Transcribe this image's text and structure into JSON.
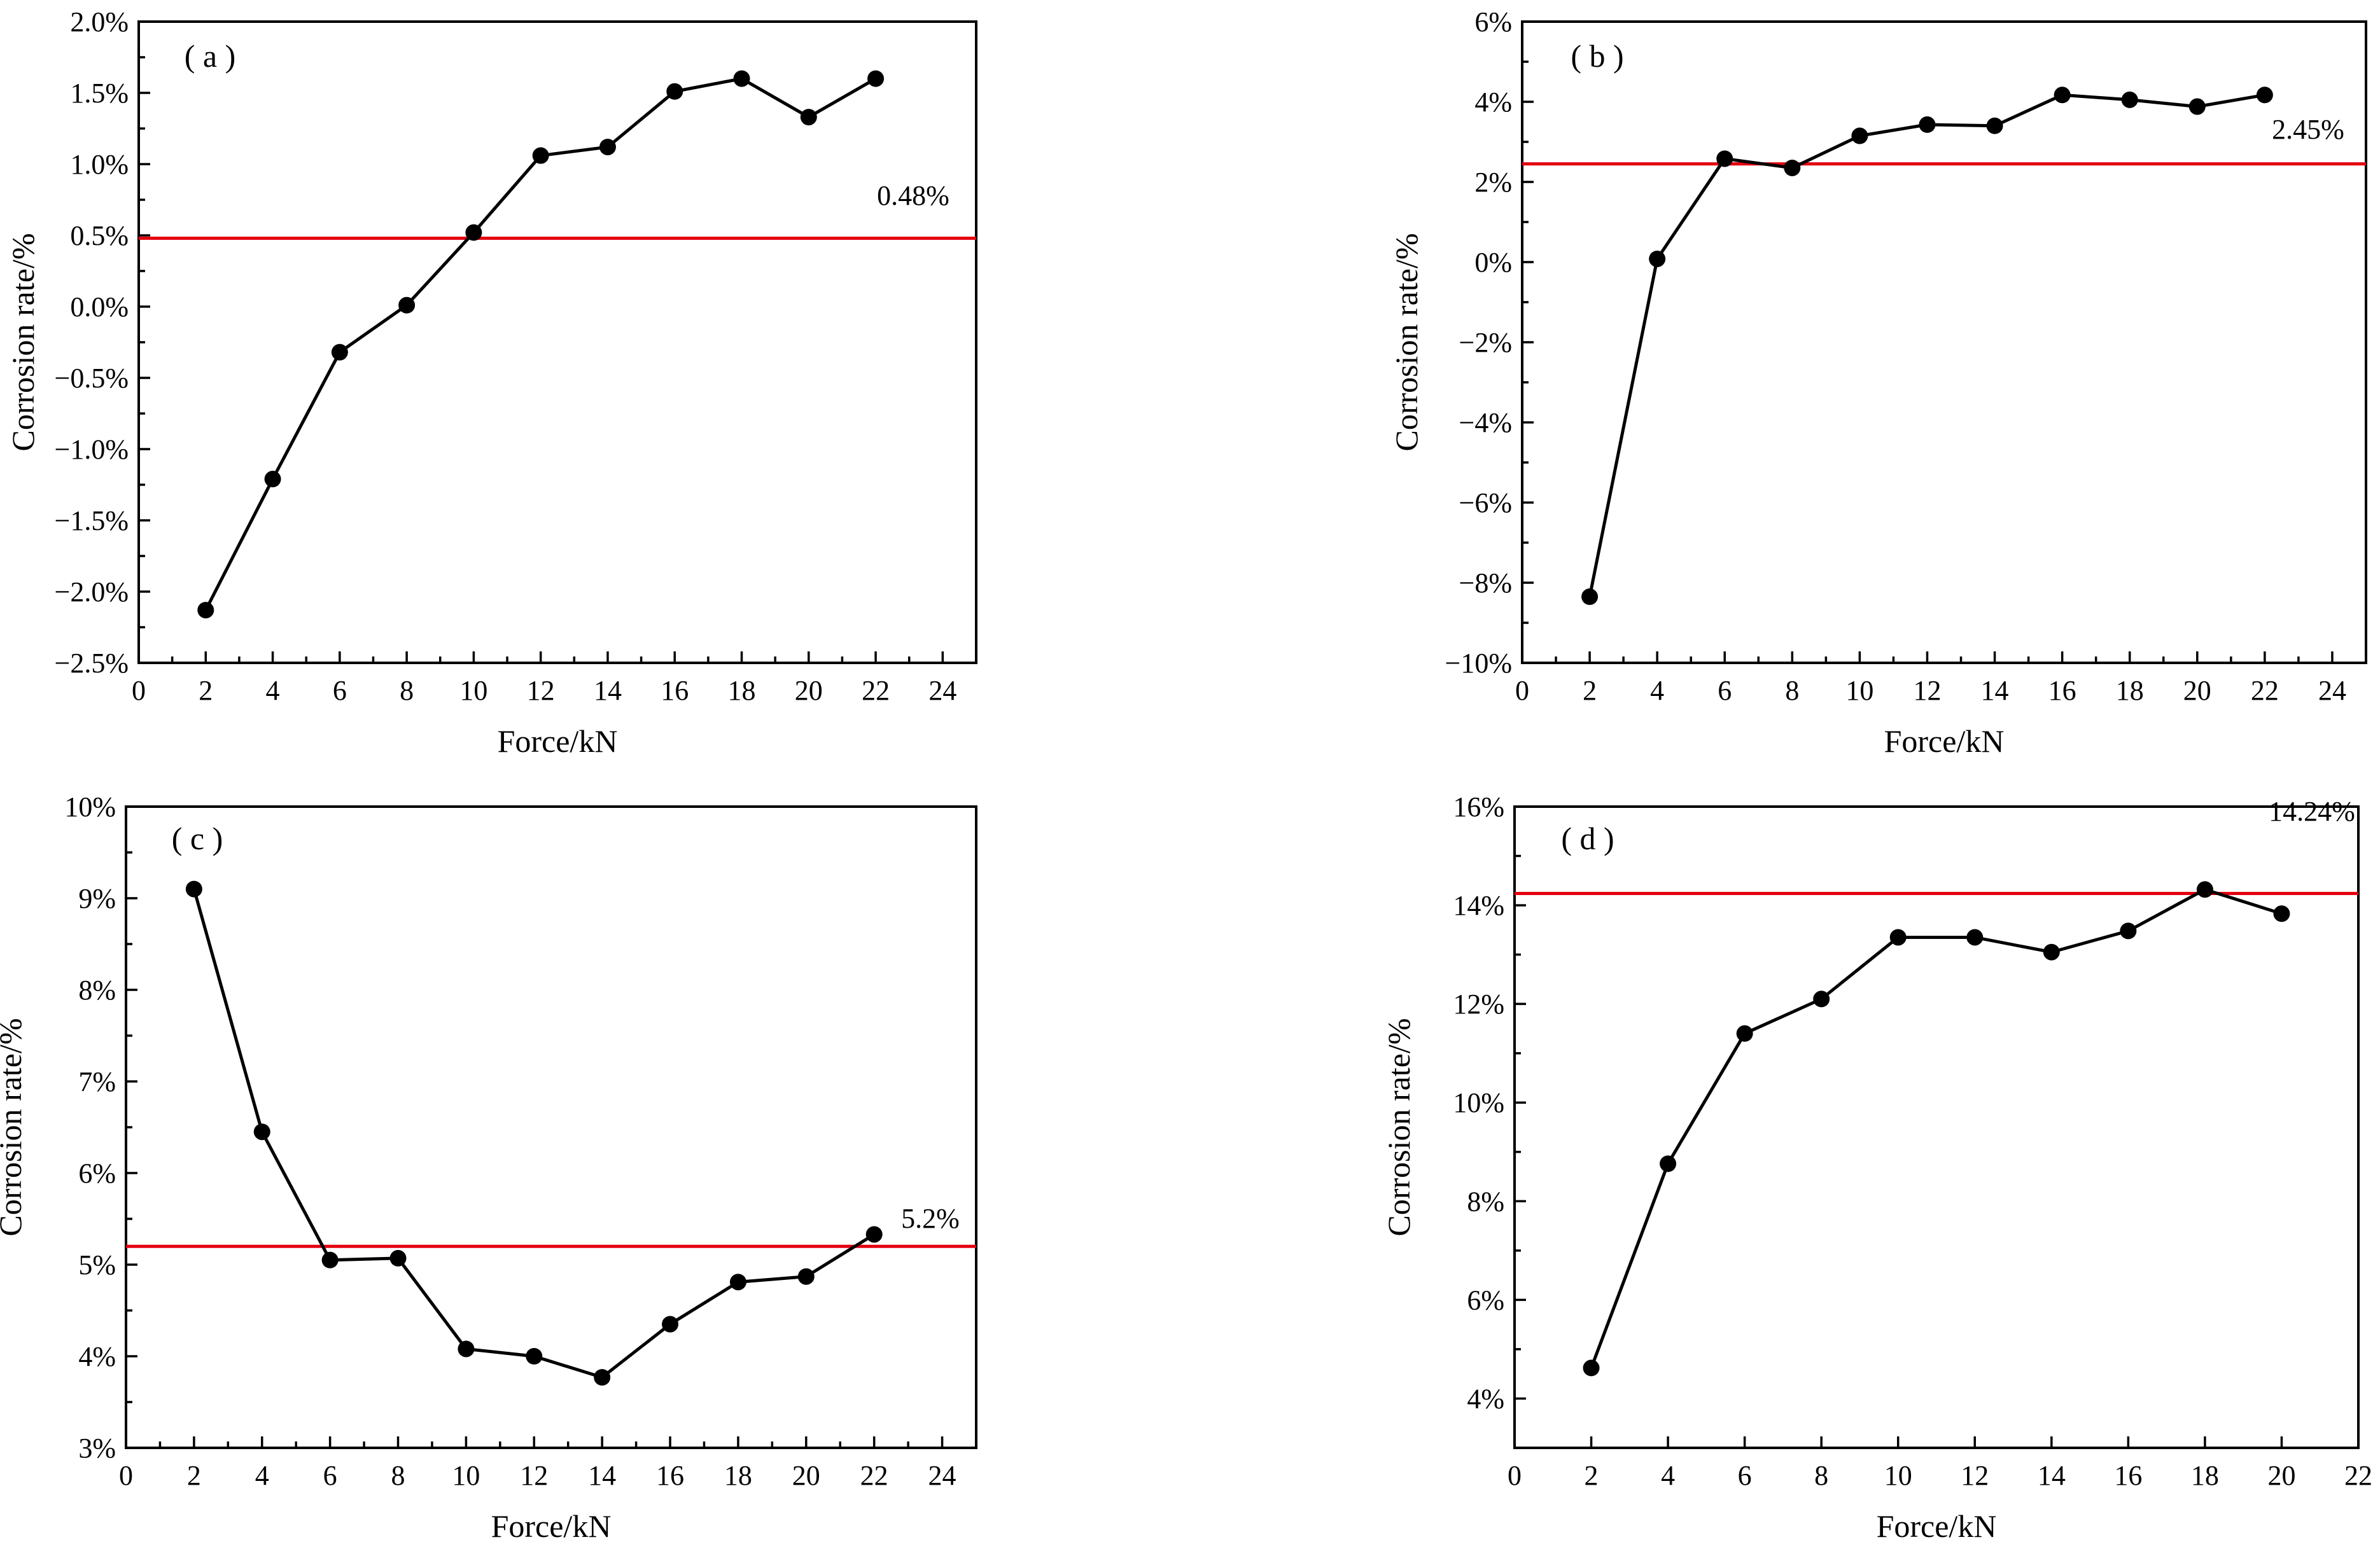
{
  "chart_data": [
    {
      "type": "line",
      "panel_label": "( a )",
      "xlabel": "Force/kN",
      "ylabel": "Corrosion rate/%",
      "xlim": [
        0,
        25
      ],
      "ylim": [
        -2.5,
        2.0
      ],
      "xticks": [
        0,
        2,
        4,
        6,
        8,
        10,
        12,
        14,
        16,
        18,
        20,
        22,
        24
      ],
      "xtick_labels": [
        "0",
        "2",
        "4",
        "6",
        "8",
        "10",
        "12",
        "14",
        "16",
        "18",
        "20",
        "22",
        "24"
      ],
      "yticks": [
        -2.5,
        -2.0,
        -1.5,
        -1.0,
        -0.5,
        0.0,
        0.5,
        1.0,
        1.5,
        2.0
      ],
      "ytick_labels": [
        "−2.5%",
        "−2.0%",
        "−1.5%",
        "−1.0%",
        "−0.5%",
        "0.0%",
        "0.5%",
        "1.0%",
        "1.5%",
        "2.0%"
      ],
      "x": [
        2,
        4,
        6,
        8,
        10,
        12,
        14,
        16,
        18,
        20,
        22
      ],
      "values": [
        -2.13,
        -1.21,
        -0.32,
        0.01,
        0.52,
        1.06,
        1.12,
        1.51,
        1.6,
        1.33,
        1.6
      ],
      "reference": {
        "value": 0.48,
        "label": "0.48%",
        "color": "#e3000f"
      }
    },
    {
      "type": "line",
      "panel_label": "( b )",
      "xlabel": "Force/kN",
      "ylabel": "Corrosion rate/%",
      "xlim": [
        0,
        25
      ],
      "ylim": [
        -10,
        6
      ],
      "xticks": [
        0,
        2,
        4,
        6,
        8,
        10,
        12,
        14,
        16,
        18,
        20,
        22,
        24
      ],
      "xtick_labels": [
        "0",
        "2",
        "4",
        "6",
        "8",
        "10",
        "12",
        "14",
        "16",
        "18",
        "20",
        "22",
        "24"
      ],
      "yticks": [
        -10,
        -8,
        -6,
        -4,
        -2,
        0,
        2,
        4,
        6
      ],
      "ytick_labels": [
        "−10%",
        "−8%",
        "−6%",
        "−4%",
        "−2%",
        "0%",
        "2%",
        "4%",
        "6%"
      ],
      "x": [
        2,
        4,
        6,
        8,
        10,
        12,
        14,
        16,
        18,
        20,
        22
      ],
      "values": [
        -8.35,
        0.08,
        2.58,
        2.35,
        3.15,
        3.43,
        3.4,
        4.17,
        4.05,
        3.88,
        4.17
      ],
      "reference": {
        "value": 2.45,
        "label": "2.45%",
        "color": "#e3000f"
      }
    },
    {
      "type": "line",
      "panel_label": "( c )",
      "xlabel": "Force/kN",
      "ylabel": "Corrosion rate/%",
      "xlim": [
        0,
        25
      ],
      "ylim": [
        3,
        10
      ],
      "xticks": [
        0,
        2,
        4,
        6,
        8,
        10,
        12,
        14,
        16,
        18,
        20,
        22,
        24
      ],
      "xtick_labels": [
        "0",
        "2",
        "4",
        "6",
        "8",
        "10",
        "12",
        "14",
        "16",
        "18",
        "20",
        "22",
        "24"
      ],
      "yticks": [
        3,
        4,
        5,
        6,
        7,
        8,
        9,
        10
      ],
      "ytick_labels": [
        "3%",
        "4%",
        "5%",
        "6%",
        "7%",
        "8%",
        "9%",
        "10%"
      ],
      "x": [
        2,
        4,
        6,
        8,
        10,
        12,
        14,
        16,
        18,
        20,
        22
      ],
      "values": [
        9.1,
        6.45,
        5.05,
        5.07,
        4.08,
        4.0,
        3.77,
        4.35,
        4.81,
        4.87,
        5.33
      ],
      "reference": {
        "value": 5.2,
        "label": "5.2%",
        "color": "#e3000f"
      }
    },
    {
      "type": "line",
      "panel_label": "( d )",
      "xlabel": "Force/kN",
      "ylabel": "Corrosion rate/%",
      "xlim": [
        0,
        22
      ],
      "ylim": [
        3,
        16
      ],
      "xticks": [
        0,
        2,
        4,
        6,
        8,
        10,
        12,
        14,
        16,
        18,
        20,
        22
      ],
      "xtick_labels": [
        "0",
        "2",
        "4",
        "6",
        "8",
        "10",
        "12",
        "14",
        "16",
        "18",
        "20",
        "22"
      ],
      "yticks": [
        4,
        6,
        8,
        10,
        12,
        14,
        16
      ],
      "ytick_labels": [
        "4%",
        "6%",
        "8%",
        "10%",
        "12%",
        "14%",
        "16%"
      ],
      "x": [
        2,
        4,
        6,
        8,
        10,
        12,
        14,
        16,
        18,
        20
      ],
      "values": [
        4.62,
        8.76,
        11.4,
        12.1,
        13.35,
        13.35,
        13.05,
        13.48,
        14.32,
        13.83
      ],
      "reference": {
        "value": 14.24,
        "label": "14.24%",
        "color": "#e3000f"
      }
    }
  ]
}
